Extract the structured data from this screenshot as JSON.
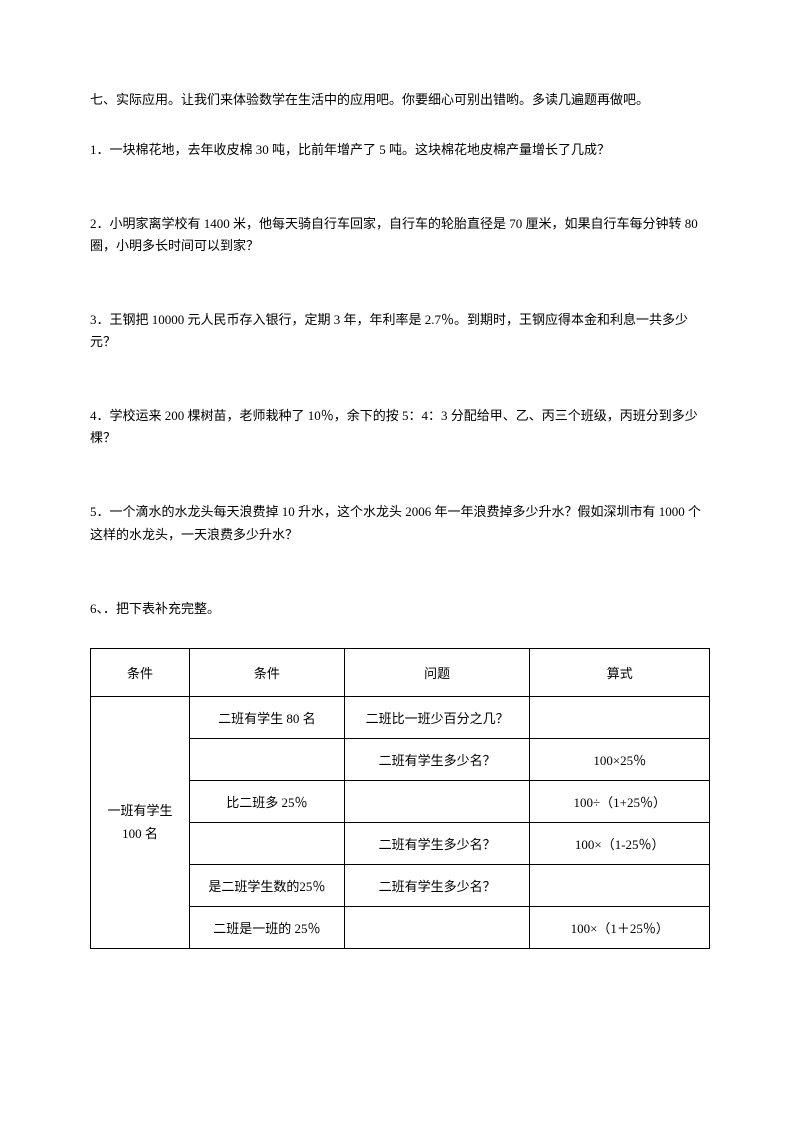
{
  "section_title": "七、实际应用。让我们来体验数学在生活中的应用吧。你要细心可别出错哟。多读几遍题再做吧。",
  "questions": {
    "q1": "1．一块棉花地，去年收皮棉 30 吨，比前年增产了 5 吨。这块棉花地皮棉产量增长了几成？",
    "q2": "2．小明家离学校有 1400 米，他每天骑自行车回家，自行车的轮胎直径是 70 厘米，如果自行车每分钟转 80 圈，小明多长时间可以到家？",
    "q3": "3．王钢把 10000 元人民币存入银行，定期 3 年，年利率是 2.7％。到期时，王钢应得本金和利息一共多少元？",
    "q4": "4．学校运来 200 棵树苗，老师栽种了 10％，余下的按 5：4：3 分配给甲、乙、丙三个班级，丙班分到多少棵？",
    "q5": "5．一个滴水的水龙头每天浪费掉 10 升水，这个水龙头 2006 年一年浪费掉多少升水？假如深圳市有 1000 个这样的水龙头，一天浪费多少升水？",
    "q6": "6、．把下表补充完整。"
  },
  "table": {
    "headers": {
      "h1": "条件",
      "h2": "条件",
      "h3": "问题",
      "h4": "算式"
    },
    "merged_cell_line1": "一班有学生",
    "merged_cell_line2": "100 名",
    "rows": {
      "r1": {
        "c2": "二班有学生 80 名",
        "c3": "二班比一班少百分之几？",
        "c4": ""
      },
      "r2": {
        "c2": "",
        "c3": "二班有学生多少名？",
        "c4": "100×25％"
      },
      "r3": {
        "c2": "比二班多 25％",
        "c3": "",
        "c4": "100÷（1+25％）"
      },
      "r4": {
        "c2": "",
        "c3": "二班有学生多少名？",
        "c4": "100×（1-25％）"
      },
      "r5": {
        "c2": "是二班学生数的25％",
        "c3": "二班有学生多少名？",
        "c4": ""
      },
      "r6": {
        "c2": "二班是一班的 25％",
        "c3": "",
        "c4": "100×（1＋25％）"
      }
    }
  },
  "styles": {
    "text_color": "#000000",
    "background_color": "#ffffff",
    "border_color": "#000000",
    "body_font_size": 13,
    "table_font_size": 13
  }
}
